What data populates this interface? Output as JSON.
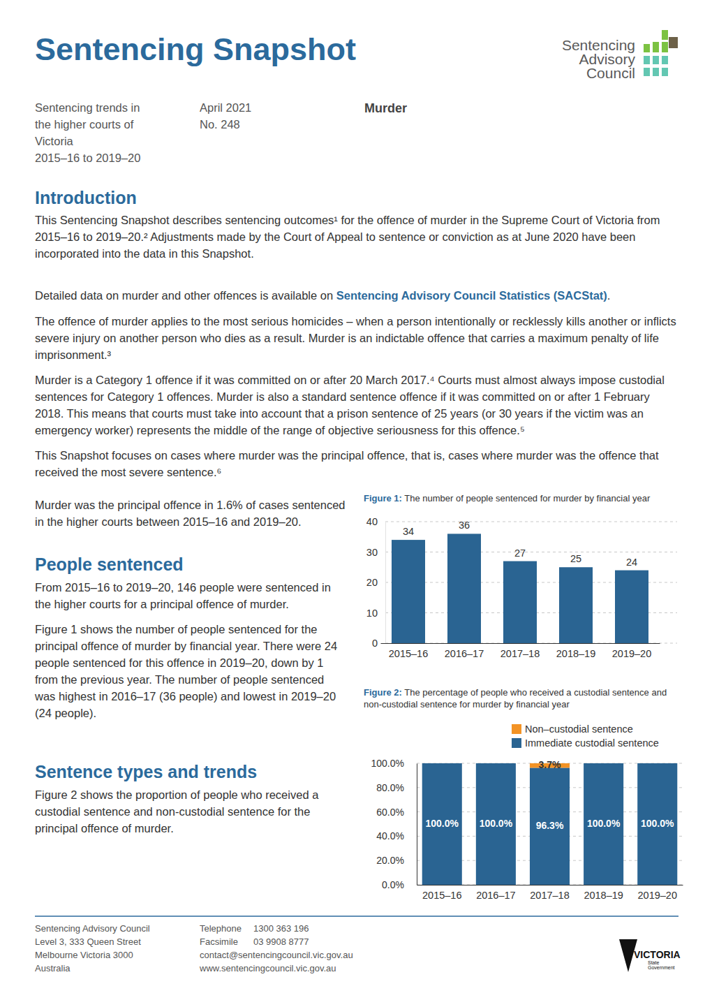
{
  "header": {
    "title": "Sentencing Snapshot",
    "logo": [
      "Sentencing",
      "Advisory",
      "Council"
    ],
    "meta": {
      "description": [
        "Sentencing trends in",
        "the higher courts of",
        "Victoria",
        "2015–16 to 2019–20"
      ],
      "issue": [
        "April 2021",
        "No. 248"
      ],
      "offence": "Murder"
    }
  },
  "sections": [
    {
      "heading": "Introduction",
      "paragraphs": [
        [
          "This Sentencing Snapshot describes sentencing outcomes¹ for the offence of murder in the Supreme Court of Victoria from 2015–16 to 2019–20.² Adjustments made by the Court of Appeal to sentence or conviction as at June 2020 have been incorporated into the data in this Snapshot."
        ],
        [
          "Detailed data on murder and other offences is available on ",
          {
            "link": "Sentencing Advisory Council Statistics (SACStat)"
          },
          "."
        ],
        [
          "The offence of murder applies to the most serious homicides – when a person intentionally or recklessly kills another or inflicts severe injury on another person who dies as a result. Murder is an indictable offence that carries a maximum penalty of life imprisonment.³"
        ],
        [
          "Murder is a Category 1 offence if it was committed on or after 20 March 2017.⁴ Courts must almost always impose custodial sentences for Category 1 offences. Murder is also a standard sentence offence if it was committed on or after 1 February 2018. This means that courts must take into account that a prison sentence of 25 years (or 30 years if the victim was an emergency worker) represents the middle of the range of objective seriousness for this offence.⁵"
        ],
        [
          "This Snapshot focuses on cases where murder was the principal offence, that is, cases where murder was the offence that received the most severe sentence.⁶"
        ]
      ]
    },
    {
      "paragraphs": [
        [
          "Murder was the principal offence in 1.6% of cases sentenced in the higher courts between 2015–16 and 2019–20."
        ]
      ]
    },
    {
      "heading": "People sentenced",
      "paragraphs": [
        [
          "From 2015–16 to 2019–20, 146 people were sentenced in the higher courts for a principal offence of murder."
        ],
        [
          "Figure 1 shows the number of people sentenced for the principal offence of murder by financial year. There were 24 people sentenced for this offence in 2019–20, down by 1 from the previous year. The number of people sentenced was highest in 2016–17 (36 people) and lowest in 2019–20 (24 people)."
        ]
      ]
    },
    {
      "heading": "Sentence types and trends",
      "paragraphs": [
        [
          "Figure 2 shows the proportion of people who received a custodial sentence and non-custodial sentence for the principal offence of murder."
        ]
      ]
    }
  ],
  "chart_data": [
    {
      "type": "bar",
      "figure_label": "Figure 1:",
      "title": "The number of people sentenced for murder by financial year",
      "categories": [
        "2015–16",
        "2016–17",
        "2017–18",
        "2018–19",
        "2019–20"
      ],
      "values": [
        34,
        36,
        27,
        25,
        24
      ],
      "color": "#2a6492",
      "ylim": [
        0,
        40
      ],
      "yticks": [
        0,
        10,
        20,
        30,
        40
      ],
      "grid": true,
      "data_labels": true
    },
    {
      "type": "bar",
      "figure_label": "Figure 2:",
      "title": "The percentage of people who received a custodial sentence and non-custodial sentence for murder by financial year",
      "categories": [
        "2015–16",
        "2016–17",
        "2017–18",
        "2018–19",
        "2019–20"
      ],
      "series": [
        {
          "name": "Immediate custodial sentence",
          "color": "#2a6492",
          "values": [
            100,
            100,
            96.3,
            100,
            100
          ],
          "value_labels": [
            "100.0%",
            "100.0%",
            "96.3%",
            "100.0%",
            "100.0%"
          ]
        },
        {
          "name": "Non–custodial sentence",
          "color": "#f39325",
          "values": [
            0,
            0,
            3.7,
            0,
            0
          ],
          "value_labels": [
            null,
            null,
            "3.7%",
            null,
            null
          ]
        }
      ],
      "ylim": [
        0,
        100
      ],
      "yticks": [
        {
          "value": 0,
          "label": "0.0%"
        },
        {
          "value": 20,
          "label": "20.0%"
        },
        {
          "value": 40,
          "label": "40.0%"
        },
        {
          "value": 60,
          "label": "60.0%"
        },
        {
          "value": 80,
          "label": "80.0%"
        },
        {
          "value": 100,
          "label": "100.0%"
        }
      ],
      "stacked": true,
      "grid": true,
      "legend": "top-right",
      "data_labels": true
    }
  ],
  "footer": {
    "address": [
      "Sentencing Advisory Council",
      "Level 3, 333 Queen Street",
      "Melbourne Victoria 3000",
      "Australia"
    ],
    "contact": [
      {
        "label": "Telephone",
        "value": "1300 363 196"
      },
      {
        "label": "Facsimile",
        "value": "03 9908 8777"
      }
    ],
    "email": "contact@sentencingcouncil.vic.gov.au",
    "website": "www.sentencingcouncil.vic.gov.au",
    "victoria_logo": {
      "name": "VICTORIA",
      "sub": [
        "State",
        "Government"
      ]
    }
  }
}
